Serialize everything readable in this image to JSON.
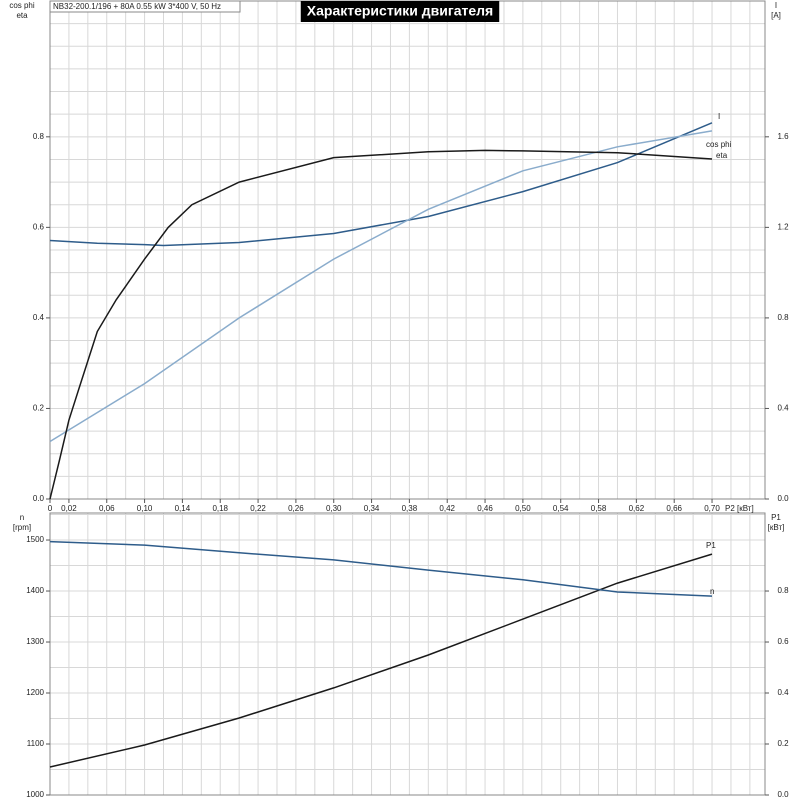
{
  "chart_data": [
    {
      "type": "line",
      "subtitle": "NB32-200.1/196 + 80A   0.55 kW   3*400 V, 50 Hz",
      "title": "Характеристики двигателя",
      "ylabel": [
        "cos phi",
        "eta"
      ],
      "y2label": [
        "I",
        "[A]"
      ],
      "xlabel": "P2 [кВт]",
      "xlim": [
        0,
        0.756
      ],
      "ylim": [
        0,
        1.1
      ],
      "y2lim": [
        0,
        2.2
      ],
      "xticks": [
        0,
        {
          "value": 0.02,
          "label": "0,02"
        },
        {
          "value": 0.06,
          "label": "0,06"
        },
        {
          "value": 0.1,
          "label": "0,10"
        },
        {
          "value": 0.14,
          "label": "0,14"
        },
        {
          "value": 0.18,
          "label": "0,18"
        },
        {
          "value": 0.22,
          "label": "0,22"
        },
        {
          "value": 0.26,
          "label": "0,26"
        },
        {
          "value": 0.3,
          "label": "0,30"
        },
        {
          "value": 0.34,
          "label": "0,34"
        },
        {
          "value": 0.38,
          "label": "0,38"
        },
        {
          "value": 0.42,
          "label": "0,42"
        },
        {
          "value": 0.46,
          "label": "0,46"
        },
        {
          "value": 0.5,
          "label": "0,50"
        },
        {
          "value": 0.54,
          "label": "0,54"
        },
        {
          "value": 0.58,
          "label": "0,58"
        },
        {
          "value": 0.62,
          "label": "0,62"
        },
        {
          "value": 0.66,
          "label": "0,66"
        },
        {
          "value": 0.7,
          "label": "0,70"
        }
      ],
      "yticks": [
        {
          "value": 0,
          "label": "0.0"
        },
        0.2,
        0.4,
        0.6,
        0.8
      ],
      "y2ticks": [
        {
          "value": 0,
          "label": "0.0"
        },
        0.4,
        0.8,
        1.2,
        1.6
      ],
      "xgrid": [
        0.02,
        0.04,
        0.06,
        0.08,
        0.1,
        0.12,
        0.14,
        0.16,
        0.18,
        0.2,
        0.22,
        0.24,
        0.26,
        0.28,
        0.3,
        0.32,
        0.34,
        0.36,
        0.38,
        0.4,
        0.42,
        0.44,
        0.46,
        0.48,
        0.5,
        0.52,
        0.54,
        0.56,
        0.58,
        0.6,
        0.62,
        0.64,
        0.66,
        0.68,
        0.7,
        0.72,
        0.74
      ],
      "ygrid": [
        0.05,
        0.1,
        0.15,
        0.2,
        0.25,
        0.3,
        0.35,
        0.4,
        0.45,
        0.5,
        0.55,
        0.6,
        0.65,
        0.7,
        0.75,
        0.8,
        0.85,
        0.9,
        0.95,
        1.0,
        1.05
      ],
      "series": [
        {
          "name": "I",
          "color": "#2e5c8a",
          "axis": "y2",
          "x": [
            0,
            0.05,
            0.1,
            0.12,
            0.2,
            0.3,
            0.4,
            0.5,
            0.6,
            0.7
          ],
          "values": [
            1.142,
            1.13,
            1.124,
            1.12,
            1.133,
            1.173,
            1.248,
            1.358,
            1.486,
            1.662
          ]
        },
        {
          "name": "cos phi",
          "color": "#8aaccc",
          "x": [
            0,
            0.1,
            0.2,
            0.3,
            0.4,
            0.5,
            0.6,
            0.7
          ],
          "values": [
            0.127,
            0.255,
            0.4,
            0.53,
            0.64,
            0.725,
            0.778,
            0.813
          ]
        },
        {
          "name": "eta",
          "color": "#1a1a1a",
          "x": [
            0,
            0.01,
            0.02,
            0.03,
            0.05,
            0.07,
            0.1,
            0.125,
            0.15,
            0.2,
            0.3,
            0.4,
            0.46,
            0.5,
            0.6,
            0.7
          ],
          "values": [
            0,
            0.086,
            0.174,
            0.24,
            0.37,
            0.44,
            0.53,
            0.6,
            0.65,
            0.7,
            0.754,
            0.767,
            0.77,
            0.769,
            0.765,
            0.751
          ]
        }
      ]
    },
    {
      "type": "line",
      "ylabel": [
        "n",
        "[rpm]"
      ],
      "y2label": [
        "P1",
        "[кВт]"
      ],
      "xlim": [
        0,
        0.756
      ],
      "ylim": [
        1000,
        1553
      ],
      "y2lim": [
        0,
        1.106
      ],
      "yticks": [
        1000,
        1100,
        1200,
        1300,
        1400,
        1500
      ],
      "y2ticks": [
        {
          "value": 0,
          "label": "0.0"
        },
        0.2,
        0.4,
        0.6,
        0.8
      ],
      "xgrid": [
        0.02,
        0.04,
        0.06,
        0.08,
        0.1,
        0.12,
        0.14,
        0.16,
        0.18,
        0.2,
        0.22,
        0.24,
        0.26,
        0.28,
        0.3,
        0.32,
        0.34,
        0.36,
        0.38,
        0.4,
        0.42,
        0.44,
        0.46,
        0.48,
        0.5,
        0.52,
        0.54,
        0.56,
        0.58,
        0.6,
        0.62,
        0.64,
        0.66,
        0.68,
        0.7,
        0.72,
        0.74
      ],
      "ygrid": [
        1050,
        1100,
        1150,
        1200,
        1250,
        1300,
        1350,
        1400,
        1450,
        1500,
        1550
      ],
      "series": [
        {
          "name": "P1",
          "color": "#1a1a1a",
          "axis": "y2",
          "x": [
            0,
            0.1,
            0.2,
            0.3,
            0.4,
            0.5,
            0.6,
            0.7
          ],
          "values": [
            0.11,
            0.196,
            0.302,
            0.42,
            0.549,
            0.69,
            0.831,
            0.945
          ]
        },
        {
          "name": "n",
          "color": "#2e5c8a",
          "x": [
            0,
            0.1,
            0.2,
            0.3,
            0.4,
            0.5,
            0.6,
            0.7
          ],
          "values": [
            1497,
            1490,
            1475,
            1461,
            1441,
            1422,
            1398,
            1390
          ]
        }
      ]
    }
  ]
}
